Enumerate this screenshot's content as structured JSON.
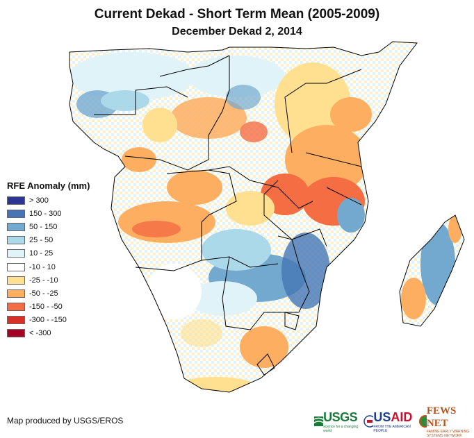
{
  "header": {
    "title": "Current Dekad - Short Term Mean (2005-2009)",
    "subtitle": "December Dekad 2, 2014"
  },
  "legend": {
    "title": "RFE Anomaly (mm)",
    "items": [
      {
        "label": "> 300",
        "color": "#2d3592"
      },
      {
        "label": "150 - 300",
        "color": "#4575b4"
      },
      {
        "label": "50 - 150",
        "color": "#74a9cf"
      },
      {
        "label": "25 - 50",
        "color": "#abd9e9"
      },
      {
        "label": "10 - 25",
        "color": "#e0f3f8"
      },
      {
        "label": "-10 - 10",
        "color": "#ffffff"
      },
      {
        "label": "-25 - -10",
        "color": "#fee090"
      },
      {
        "label": "-50 - -25",
        "color": "#fdae61"
      },
      {
        "label": "-150 - -50",
        "color": "#f46d43"
      },
      {
        "label": "-300 - -150",
        "color": "#d73027"
      },
      {
        "label": "< -300",
        "color": "#a50026"
      }
    ]
  },
  "footer": {
    "credit": "Map produced by USGS/EROS",
    "logos": {
      "usgs": "USGS",
      "usgs_tagline": "science for a changing world",
      "usaid_a": "US",
      "usaid_b": "AID",
      "usaid_tagline": "FROM THE AMERICAN PEOPLE",
      "fews": "FEWS NET",
      "fews_tagline": "FAMINE EARLY WARNING SYSTEMS NETWORK"
    }
  }
}
